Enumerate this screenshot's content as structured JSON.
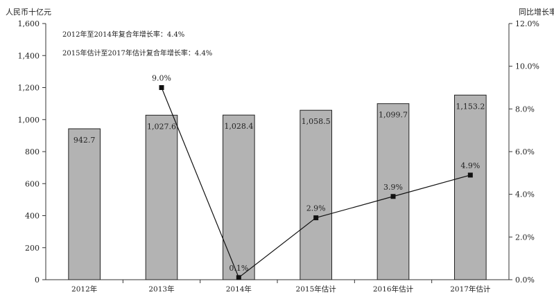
{
  "chart_data": {
    "type": "bar",
    "categories": [
      "2012年",
      "2013年",
      "2014年",
      "2015年估计",
      "2016年估计",
      "2017年估计"
    ],
    "series": [
      {
        "type": "bar",
        "axis": "left",
        "values": [
          942.7,
          1027.6,
          1028.4,
          1058.5,
          1099.7,
          1153.2
        ],
        "labels": [
          "942.7",
          "1,027.6",
          "1,028.4",
          "1,058.5",
          "1,099.7",
          "1,153.2"
        ],
        "color": "#b3b3b3"
      },
      {
        "type": "line",
        "axis": "right",
        "values": [
          null,
          9.0,
          0.1,
          2.9,
          3.9,
          4.9
        ],
        "labels": [
          "",
          "9.0%",
          "0.1%",
          "2.9%",
          "3.9%",
          "4.9%"
        ],
        "color": "#111111"
      }
    ],
    "ylabel_left": "人民币十亿元",
    "ylabel_right": "同比增长率",
    "ylim_left": [
      0,
      1600
    ],
    "ylim_right": [
      0,
      12
    ],
    "yticks_left": [
      "0",
      "200",
      "400",
      "600",
      "800",
      "1,000",
      "1,200",
      "1,400",
      "1,600"
    ],
    "yticks_right": [
      "0.0%",
      "2.0%",
      "4.0%",
      "6.0%",
      "8.0%",
      "10.0%",
      "12.0%"
    ],
    "annotations": [
      "2012年至2014年复合年增长率：4.4%",
      "2015年估计至2017年估计复合年增长率：4.4%"
    ],
    "grid": false
  }
}
